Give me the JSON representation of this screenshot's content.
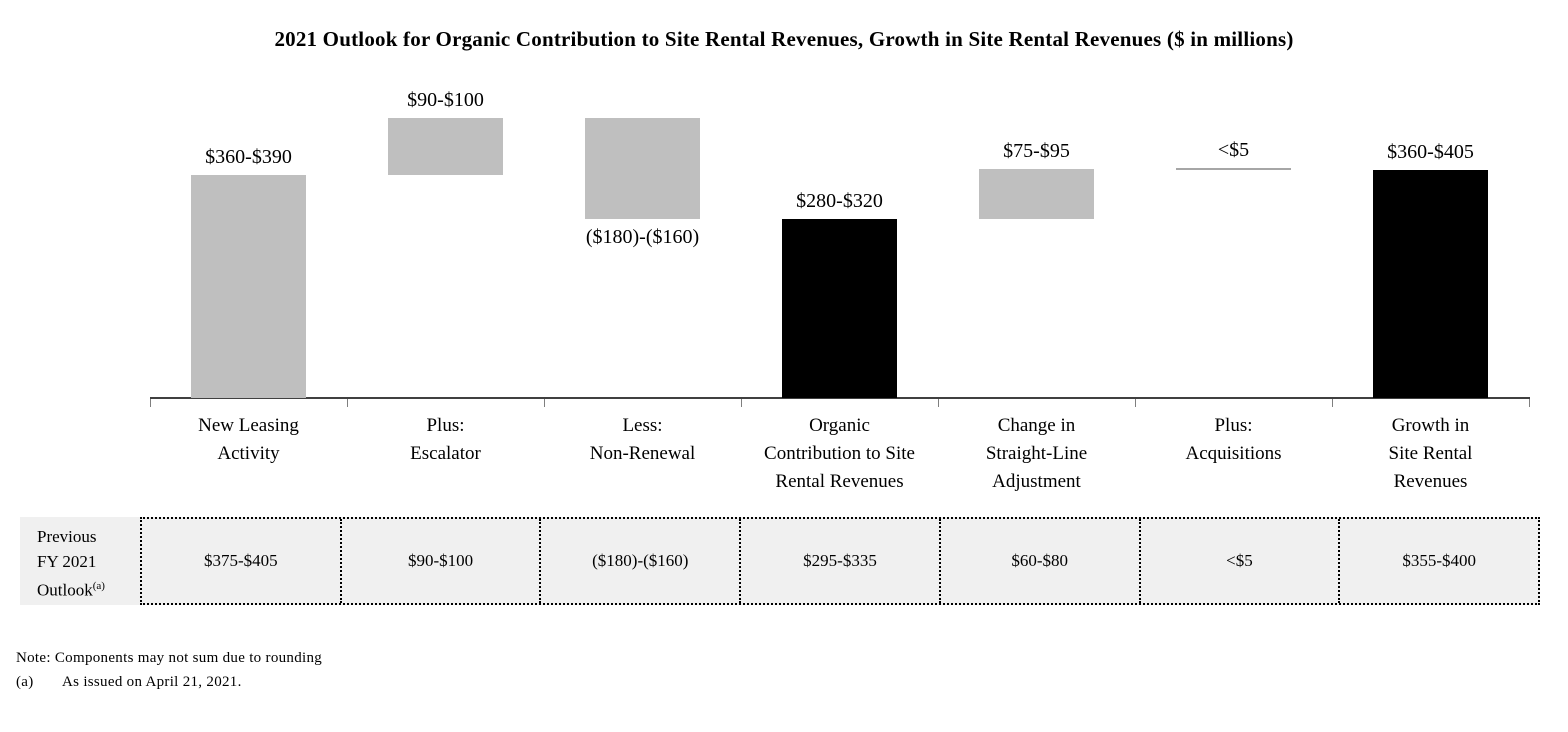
{
  "title": "2021 Outlook for Organic Contribution to Site Rental Revenues, Growth in Site Rental Revenues ($ in millions)",
  "chart_data": {
    "type": "bar",
    "subtype": "waterfall",
    "title": "2021 Outlook for Organic Contribution to Site Rental Revenues, Growth in Site Rental Revenues ($ in millions)",
    "unit": "$ in millions",
    "grid": false,
    "ylim": [
      0,
      470
    ],
    "colors": {
      "gray": "#bfbfbf",
      "black": "#000000",
      "line": "#a6a6a6"
    },
    "bars": [
      {
        "category_lines": [
          "New Leasing",
          "Activity"
        ],
        "label": "$360-$390",
        "range_low": 360,
        "range_high": 390,
        "start": 0,
        "end": 375,
        "style": "gray",
        "label_position": "above"
      },
      {
        "category_lines": [
          "Plus:",
          "Escalator"
        ],
        "label": "$90-$100",
        "range_low": 90,
        "range_high": 100,
        "start": 375,
        "end": 470,
        "style": "gray",
        "label_position": "above"
      },
      {
        "category_lines": [
          "Less:",
          "Non-Renewal"
        ],
        "label": "($180)-($160)",
        "range_low": -180,
        "range_high": -160,
        "start": 470,
        "end": 300,
        "style": "gray",
        "label_position": "below"
      },
      {
        "category_lines": [
          "Organic",
          "Contribution to Site",
          "Rental Revenues"
        ],
        "label": "$280-$320",
        "range_low": 280,
        "range_high": 320,
        "start": 0,
        "end": 300,
        "style": "black",
        "label_position": "above"
      },
      {
        "category_lines": [
          "Change in",
          "Straight-Line",
          "Adjustment"
        ],
        "label": "$75-$95",
        "range_low": 75,
        "range_high": 95,
        "start": 300,
        "end": 385,
        "style": "gray",
        "label_position": "above"
      },
      {
        "category_lines": [
          "Plus:",
          "Acquisitions"
        ],
        "label": "<$5",
        "range_low": 0,
        "range_high": 5,
        "start": 385,
        "end": 385,
        "style": "line",
        "label_position": "above"
      },
      {
        "category_lines": [
          "Growth in",
          "Site Rental",
          "Revenues"
        ],
        "label": "$360-$405",
        "range_low": 360,
        "range_high": 405,
        "start": 0,
        "end": 382.5,
        "style": "black",
        "label_position": "above"
      }
    ]
  },
  "outlook_table": {
    "header_lines": [
      "Previous",
      "FY 2021",
      "Outlook"
    ],
    "header_superscript": "(a)",
    "values": [
      "$375-$405",
      "$90-$100",
      "($180)-($160)",
      "$295-$335",
      "$60-$80",
      "<$5",
      "$355-$400"
    ]
  },
  "notes": {
    "note": "Note: Components may not sum due to rounding",
    "footnote_marker": "(a)",
    "footnote_text": "As issued on April 21, 2021."
  }
}
